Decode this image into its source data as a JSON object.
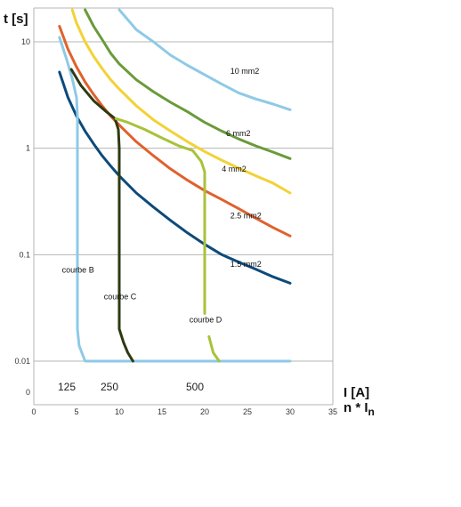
{
  "chart_data": {
    "type": "line",
    "title": "",
    "ylabel": "t [s]",
    "xlabel_line1": "I [A]",
    "xlabel_line2_base": "n * I",
    "xlabel_line2_sub": "n",
    "xlim": [
      0,
      35
    ],
    "x_ticks": [
      "0",
      "5",
      "10",
      "15",
      "20",
      "25",
      "30",
      "35"
    ],
    "y_scale": "log",
    "ylim": [
      0.01,
      20
    ],
    "y_ticks": [
      {
        "value": 10,
        "label": "10"
      },
      {
        "value": 1,
        "label": "1"
      },
      {
        "value": 0.1,
        "label": "0.1"
      },
      {
        "value": 0.01,
        "label": "0.01"
      }
    ],
    "y_zero_label": "0",
    "grid": "horizontal",
    "current_labels": [
      {
        "x": 5,
        "text": "125"
      },
      {
        "x": 10,
        "text": "250"
      },
      {
        "x": 20,
        "text": "500"
      }
    ],
    "series": [
      {
        "name": "10 mm2",
        "color": "#8ecae6",
        "label_at": [
          23,
          5.0
        ],
        "points": [
          [
            10,
            20
          ],
          [
            12,
            13
          ],
          [
            14,
            10
          ],
          [
            16,
            7.5
          ],
          [
            18,
            6.0
          ],
          [
            20,
            4.9
          ],
          [
            22,
            4.0
          ],
          [
            24,
            3.3
          ],
          [
            26,
            2.9
          ],
          [
            28,
            2.6
          ],
          [
            30,
            2.3
          ]
        ]
      },
      {
        "name": "6 mm2",
        "color": "#6a9a3a",
        "label_at": [
          22.5,
          1.3
        ],
        "points": [
          [
            6,
            20
          ],
          [
            7,
            14
          ],
          [
            8,
            10.5
          ],
          [
            9,
            7.8
          ],
          [
            10,
            6.2
          ],
          [
            12,
            4.4
          ],
          [
            14,
            3.4
          ],
          [
            16,
            2.7
          ],
          [
            18,
            2.2
          ],
          [
            20,
            1.75
          ],
          [
            22,
            1.45
          ],
          [
            24,
            1.22
          ],
          [
            26,
            1.05
          ],
          [
            28,
            0.92
          ],
          [
            30,
            0.8
          ]
        ]
      },
      {
        "name": "4 mm2",
        "color": "#f2d235",
        "label_at": [
          22,
          0.6
        ],
        "points": [
          [
            4.5,
            20
          ],
          [
            5,
            15
          ],
          [
            6,
            10
          ],
          [
            7,
            7.3
          ],
          [
            8,
            5.6
          ],
          [
            9,
            4.4
          ],
          [
            10,
            3.6
          ],
          [
            12,
            2.5
          ],
          [
            14,
            1.85
          ],
          [
            16,
            1.45
          ],
          [
            18,
            1.15
          ],
          [
            20,
            0.93
          ],
          [
            22,
            0.77
          ],
          [
            24,
            0.65
          ],
          [
            26,
            0.55
          ],
          [
            28,
            0.47
          ],
          [
            30,
            0.38
          ]
        ]
      },
      {
        "name": "2.5 mm2",
        "color": "#e0612d",
        "label_at": [
          23,
          0.22
        ],
        "points": [
          [
            3,
            14
          ],
          [
            4,
            8.5
          ],
          [
            5,
            5.8
          ],
          [
            6,
            4.2
          ],
          [
            7,
            3.2
          ],
          [
            8,
            2.5
          ],
          [
            9,
            2.0
          ],
          [
            10,
            1.65
          ],
          [
            12,
            1.15
          ],
          [
            14,
            0.85
          ],
          [
            16,
            0.64
          ],
          [
            18,
            0.5
          ],
          [
            20,
            0.4
          ],
          [
            22,
            0.33
          ],
          [
            24,
            0.27
          ],
          [
            26,
            0.22
          ],
          [
            28,
            0.18
          ],
          [
            30,
            0.15
          ]
        ]
      },
      {
        "name": "1.5 mm2",
        "color": "#0d4a7a",
        "label_at": [
          23,
          0.077
        ],
        "points": [
          [
            3,
            5.2
          ],
          [
            4,
            3.0
          ],
          [
            5,
            2.0
          ],
          [
            6,
            1.45
          ],
          [
            7,
            1.1
          ],
          [
            8,
            0.85
          ],
          [
            9,
            0.68
          ],
          [
            10,
            0.55
          ],
          [
            12,
            0.38
          ],
          [
            14,
            0.28
          ],
          [
            16,
            0.21
          ],
          [
            18,
            0.16
          ],
          [
            20,
            0.125
          ],
          [
            22,
            0.1
          ],
          [
            24,
            0.085
          ],
          [
            26,
            0.073
          ],
          [
            28,
            0.062
          ],
          [
            30,
            0.054
          ]
        ]
      },
      {
        "name": "courbe B",
        "color": "#8ecae6",
        "label_at": [
          3.3,
          0.068
        ],
        "points": [
          [
            3,
            11
          ],
          [
            3.8,
            7
          ],
          [
            4.5,
            4.5
          ],
          [
            5,
            3.0
          ],
          [
            5.1,
            2.0
          ],
          [
            5.1,
            0.3
          ],
          [
            5.1,
            0.02
          ],
          [
            5.3,
            0.014
          ],
          [
            6,
            0.01
          ],
          [
            30,
            0.01
          ]
        ]
      },
      {
        "name": "courbe C",
        "color": "#2f3a10",
        "label_at": [
          8.2,
          0.038
        ],
        "points": [
          [
            4.4,
            5.5
          ],
          [
            5.5,
            3.9
          ],
          [
            7,
            2.8
          ],
          [
            8.5,
            2.2
          ],
          [
            9.5,
            1.9
          ],
          [
            9.9,
            1.5
          ],
          [
            10,
            1.0
          ],
          [
            10,
            0.2
          ],
          [
            10,
            0.02
          ],
          [
            10.5,
            0.015
          ],
          [
            11,
            0.012
          ],
          [
            11.6,
            0.01
          ]
        ]
      },
      {
        "name": "courbe D",
        "color": "#a8c23a",
        "label_at": [
          18.2,
          0.023
        ],
        "points": [
          [
            9.6,
            1.9
          ],
          [
            11,
            1.75
          ],
          [
            13,
            1.5
          ],
          [
            15,
            1.25
          ],
          [
            17,
            1.05
          ],
          [
            18.6,
            0.95
          ],
          [
            19.6,
            0.75
          ],
          [
            20,
            0.6
          ],
          [
            20,
            0.1
          ],
          [
            20,
            0.028
          ]
        ]
      },
      {
        "name": "",
        "color": "#a8c23a",
        "label_at": null,
        "points": [
          [
            20.5,
            0.017
          ],
          [
            21,
            0.012
          ],
          [
            21.7,
            0.01
          ]
        ]
      }
    ]
  }
}
